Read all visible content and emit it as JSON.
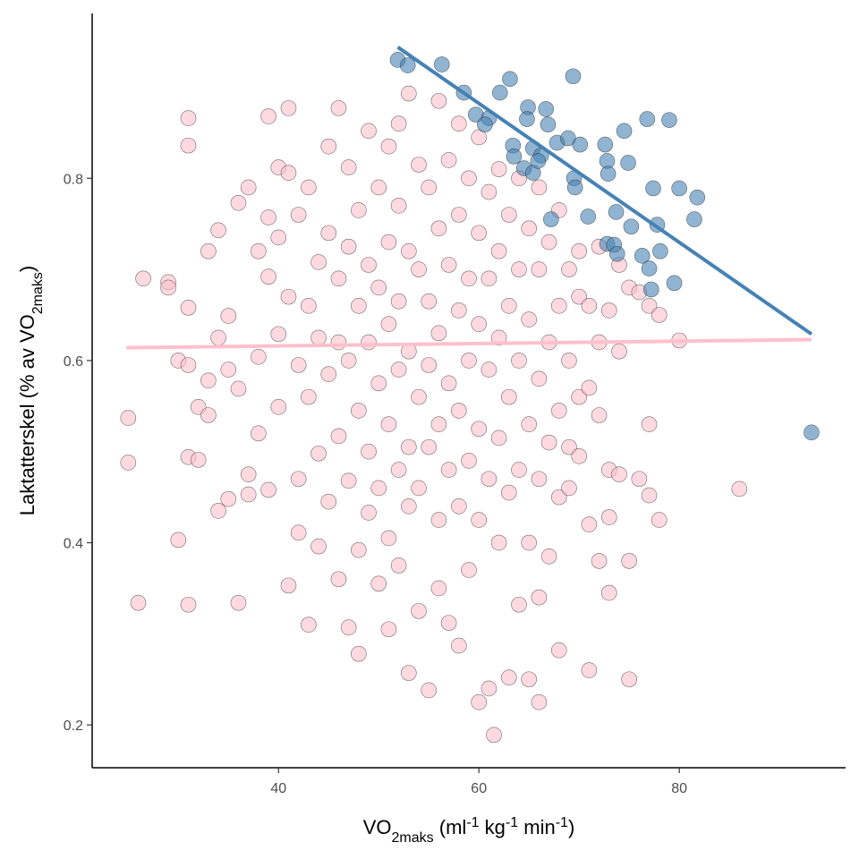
{
  "chart_data": {
    "type": "scatter",
    "xlabel_parts": [
      {
        "text": "VO"
      },
      {
        "text": "2maks",
        "shift": "sub"
      },
      {
        "text": " (ml"
      },
      {
        "text": "-1",
        "shift": "super"
      },
      {
        "text": " kg"
      },
      {
        "text": "-1",
        "shift": "super"
      },
      {
        "text": " min"
      },
      {
        "text": "-1",
        "shift": "super"
      },
      {
        "text": ")"
      }
    ],
    "ylabel_parts": [
      {
        "text": "Laktatterskel (% av VO"
      },
      {
        "text": "2maks",
        "shift": "sub"
      },
      {
        "text": ")"
      }
    ],
    "xlim": [
      21.4,
      96.6
    ],
    "ylim": [
      0.153,
      0.981
    ],
    "xticks": [
      40,
      60,
      80
    ],
    "yticks": [
      0.2,
      0.4,
      0.6,
      0.8
    ],
    "series": [
      {
        "color": "#ffc0cb",
        "x": [
          25,
          25,
          26,
          26.5,
          29,
          29,
          30,
          30,
          31,
          31,
          31,
          31,
          31,
          31,
          32,
          32,
          33,
          33,
          33,
          34,
          34,
          34,
          35,
          35,
          35,
          36,
          36,
          36,
          37,
          37,
          37,
          38,
          38,
          38,
          39,
          39,
          39,
          39,
          40,
          40,
          40,
          40,
          41,
          41,
          41,
          41,
          42,
          42,
          42,
          42,
          43,
          43,
          43,
          43,
          44,
          44,
          44,
          44,
          45,
          45,
          45,
          45,
          46,
          46,
          46,
          46,
          46,
          47,
          47,
          47,
          47,
          47,
          48,
          48,
          48,
          48,
          48,
          49,
          49,
          49,
          49,
          49,
          50,
          50,
          50,
          50,
          50,
          51,
          51,
          51,
          51,
          51,
          51,
          52,
          52,
          52,
          52,
          52,
          52,
          53,
          53,
          53,
          53,
          53,
          53,
          54,
          54,
          54,
          54,
          54,
          55,
          55,
          55,
          55,
          55,
          56,
          56,
          56,
          56,
          56,
          56,
          57,
          57,
          57,
          57,
          57,
          58,
          58,
          58,
          58,
          58,
          58,
          59,
          59,
          59,
          59,
          59,
          60,
          60,
          60,
          60,
          60,
          60,
          61,
          61,
          61,
          61,
          61,
          61.5,
          62,
          62,
          62,
          62,
          62,
          63,
          63,
          63,
          63,
          63,
          64,
          64,
          64,
          64,
          64,
          65,
          65,
          65,
          65,
          65,
          66,
          66,
          66,
          66,
          66,
          66,
          67,
          67,
          67,
          67,
          68,
          68,
          68,
          68,
          68,
          69,
          69,
          69,
          69,
          70,
          70,
          70,
          70,
          71,
          71,
          71,
          71,
          72,
          72,
          72,
          72,
          73,
          73,
          73,
          73,
          74,
          74,
          74,
          75,
          75,
          75,
          76,
          76,
          77,
          77,
          77,
          78,
          78,
          80,
          86
        ],
        "values": [
          0.537,
          0.488,
          0.334,
          0.69,
          0.686,
          0.68,
          0.6,
          0.403,
          0.866,
          0.836,
          0.658,
          0.595,
          0.494,
          0.332,
          0.549,
          0.491,
          0.72,
          0.578,
          0.54,
          0.743,
          0.625,
          0.435,
          0.649,
          0.59,
          0.448,
          0.773,
          0.569,
          0.334,
          0.79,
          0.475,
          0.453,
          0.72,
          0.604,
          0.52,
          0.868,
          0.757,
          0.692,
          0.458,
          0.812,
          0.735,
          0.629,
          0.549,
          0.877,
          0.806,
          0.67,
          0.353,
          0.76,
          0.595,
          0.47,
          0.411,
          0.79,
          0.66,
          0.56,
          0.31,
          0.708,
          0.625,
          0.498,
          0.396,
          0.835,
          0.74,
          0.585,
          0.445,
          0.877,
          0.69,
          0.62,
          0.517,
          0.36,
          0.812,
          0.725,
          0.6,
          0.468,
          0.307,
          0.765,
          0.66,
          0.545,
          0.392,
          0.278,
          0.852,
          0.705,
          0.62,
          0.5,
          0.433,
          0.79,
          0.68,
          0.575,
          0.46,
          0.355,
          0.835,
          0.73,
          0.64,
          0.53,
          0.405,
          0.305,
          0.86,
          0.77,
          0.665,
          0.59,
          0.48,
          0.375,
          0.893,
          0.72,
          0.61,
          0.505,
          0.44,
          0.257,
          0.815,
          0.7,
          0.56,
          0.46,
          0.325,
          0.79,
          0.665,
          0.595,
          0.505,
          0.238,
          0.885,
          0.745,
          0.63,
          0.53,
          0.425,
          0.35,
          0.82,
          0.705,
          0.575,
          0.48,
          0.312,
          0.86,
          0.76,
          0.655,
          0.545,
          0.44,
          0.287,
          0.8,
          0.69,
          0.6,
          0.49,
          0.37,
          0.845,
          0.74,
          0.64,
          0.525,
          0.425,
          0.225,
          0.785,
          0.69,
          0.59,
          0.47,
          0.24,
          0.189,
          0.81,
          0.72,
          0.625,
          0.515,
          0.4,
          0.76,
          0.66,
          0.56,
          0.455,
          0.252,
          0.8,
          0.7,
          0.6,
          0.48,
          0.332,
          0.745,
          0.645,
          0.53,
          0.4,
          0.25,
          0.79,
          0.7,
          0.58,
          0.47,
          0.34,
          0.225,
          0.73,
          0.62,
          0.51,
          0.385,
          0.765,
          0.66,
          0.545,
          0.45,
          0.282,
          0.7,
          0.6,
          0.505,
          0.46,
          0.72,
          0.67,
          0.56,
          0.495,
          0.66,
          0.57,
          0.42,
          0.26,
          0.725,
          0.62,
          0.54,
          0.38,
          0.655,
          0.48,
          0.428,
          0.345,
          0.705,
          0.61,
          0.475,
          0.68,
          0.38,
          0.25,
          0.675,
          0.47,
          0.66,
          0.53,
          0.452,
          0.65,
          0.425,
          0.622,
          0.459
        ]
      },
      {
        "color": "#4682b4",
        "x": [
          51.9,
          52.9,
          56.3,
          58.5,
          62.1,
          63.1,
          69.4,
          59.7,
          61.0,
          60.6,
          64.9,
          66.7,
          63.4,
          63.5,
          64.5,
          65.4,
          67.8,
          68.9,
          65.4,
          66.2,
          65.9,
          64.8,
          66.9,
          70.1,
          72.6,
          72.8,
          72.9,
          74.9,
          74.5,
          76.8,
          79.0,
          69.5,
          69.6,
          67.2,
          70.9,
          73.7,
          77.4,
          80.0,
          81.8,
          75.2,
          77.8,
          81.5,
          72.8,
          73.5,
          73.8,
          76.3,
          78.1,
          77.0,
          77.2,
          79.5,
          93.2
        ],
        "values": [
          0.93,
          0.924,
          0.925,
          0.894,
          0.894,
          0.909,
          0.912,
          0.87,
          0.866,
          0.859,
          0.878,
          0.876,
          0.836,
          0.824,
          0.811,
          0.806,
          0.839,
          0.844,
          0.833,
          0.825,
          0.819,
          0.865,
          0.859,
          0.837,
          0.837,
          0.819,
          0.805,
          0.817,
          0.852,
          0.865,
          0.864,
          0.8,
          0.79,
          0.755,
          0.758,
          0.763,
          0.789,
          0.789,
          0.779,
          0.747,
          0.749,
          0.755,
          0.728,
          0.727,
          0.717,
          0.715,
          0.72,
          0.701,
          0.678,
          0.685,
          0.521
        ]
      }
    ],
    "lines": [
      {
        "color": "#ffc0cb",
        "x": [
          24.8,
          93.2
        ],
        "y": [
          0.614,
          0.623
        ]
      },
      {
        "color": "#4682b4",
        "x": [
          51.9,
          93.2
        ],
        "y": [
          0.944,
          0.629
        ]
      }
    ]
  }
}
